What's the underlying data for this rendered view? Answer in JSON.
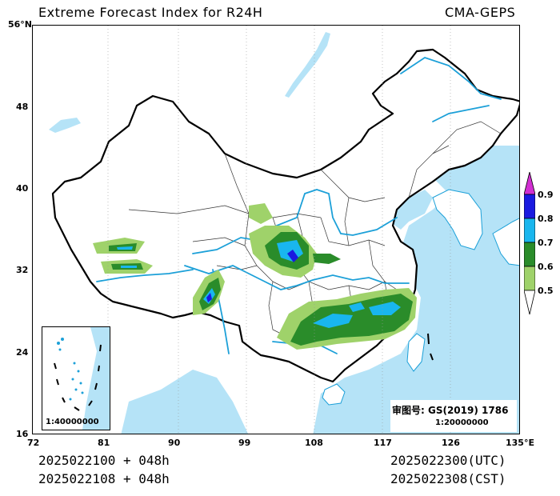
{
  "header": {
    "title": "Extreme Forecast Index for R24H",
    "model": "CMA-GEPS"
  },
  "footer": {
    "init_utc": "2025022100 + 048h",
    "init_cst": "2025022108 + 048h",
    "valid_utc": "2025022300(UTC)",
    "valid_cst": "2025022308(CST)"
  },
  "axes": {
    "lon_ticks": [
      "72",
      "81",
      "90",
      "99",
      "108",
      "117",
      "126",
      "135°E"
    ],
    "lat_ticks": [
      "56°N",
      "48",
      "40",
      "32",
      "24",
      "16"
    ]
  },
  "legend": {
    "levels": [
      "0.9",
      "0.8",
      "0.7",
      "0.6",
      "0.5"
    ],
    "colors": {
      "above_0.9": "#d22fd2",
      "0.8_0.9": "#1a1ae0",
      "0.7_0.8": "#19b6ee",
      "0.6_0.7": "#2a8c2a",
      "0.5_0.6": "#9fd26a",
      "below_0.5": "#ffffff"
    }
  },
  "inset": {
    "scale": "1:40000000"
  },
  "approval": {
    "label": "审图号: GS(2019) 1786",
    "scale": "1:20000000"
  },
  "colors": {
    "water": "#b5e3f7",
    "river": "#1ca0d8",
    "border": "#000000",
    "province": "#333333"
  }
}
